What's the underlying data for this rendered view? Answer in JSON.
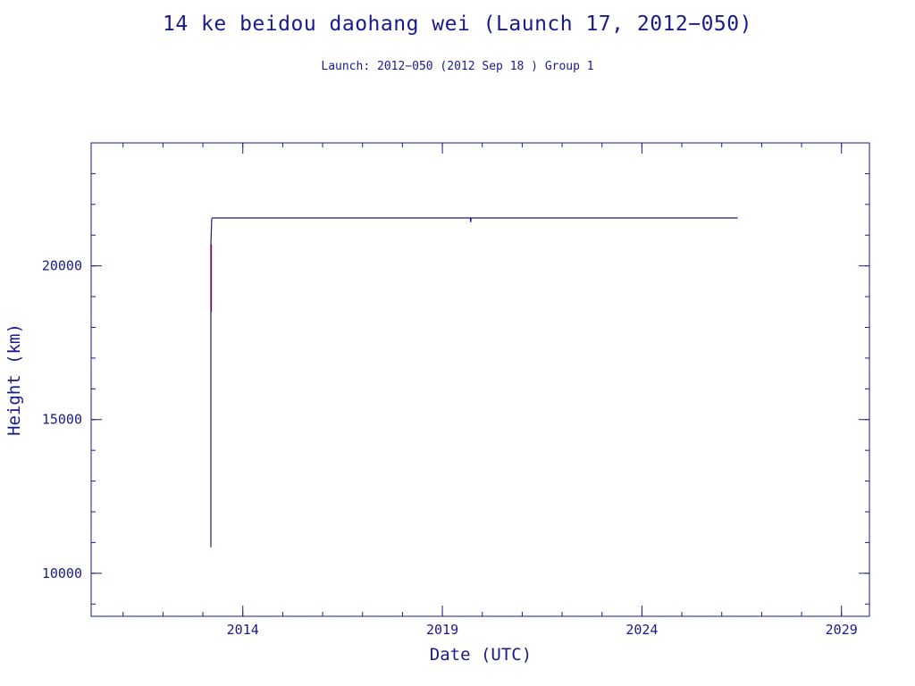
{
  "chart_data": {
    "type": "line",
    "title": "14 ke beidou daohang wei (Launch 17, 2012−050)",
    "subtitle": "Launch: 2012−050  (2012 Sep 18 )  Group 1",
    "xlabel": "Date (UTC)",
    "ylabel": "Height (km)",
    "xlim": [
      2010.2,
      2029.7
    ],
    "ylim": [
      8600,
      24000
    ],
    "x_ticks": [
      2014,
      2019,
      2024,
      2029
    ],
    "x_tick_labels": [
      "2014",
      "2019",
      "2024",
      "2029"
    ],
    "y_ticks": [
      10000,
      15000,
      20000
    ],
    "y_tick_labels": [
      "10000",
      "15000",
      "20000"
    ],
    "grid": false,
    "colors": {
      "axis": "#1a1a8c",
      "series": "#1a1a8c",
      "transfer": "#800040"
    },
    "series": [
      {
        "x": [
          2013.2,
          2013.2,
          2013.22,
          2013.23,
          2013.25,
          2019.7,
          2019.71,
          2019.72,
          2026.4
        ],
        "y": [
          10850,
          20700,
          21500,
          21550,
          21560,
          21560,
          21420,
          21560,
          21560
        ]
      },
      {
        "x": [
          2013.21,
          2013.21
        ],
        "y": [
          18500,
          20700
        ]
      }
    ]
  }
}
